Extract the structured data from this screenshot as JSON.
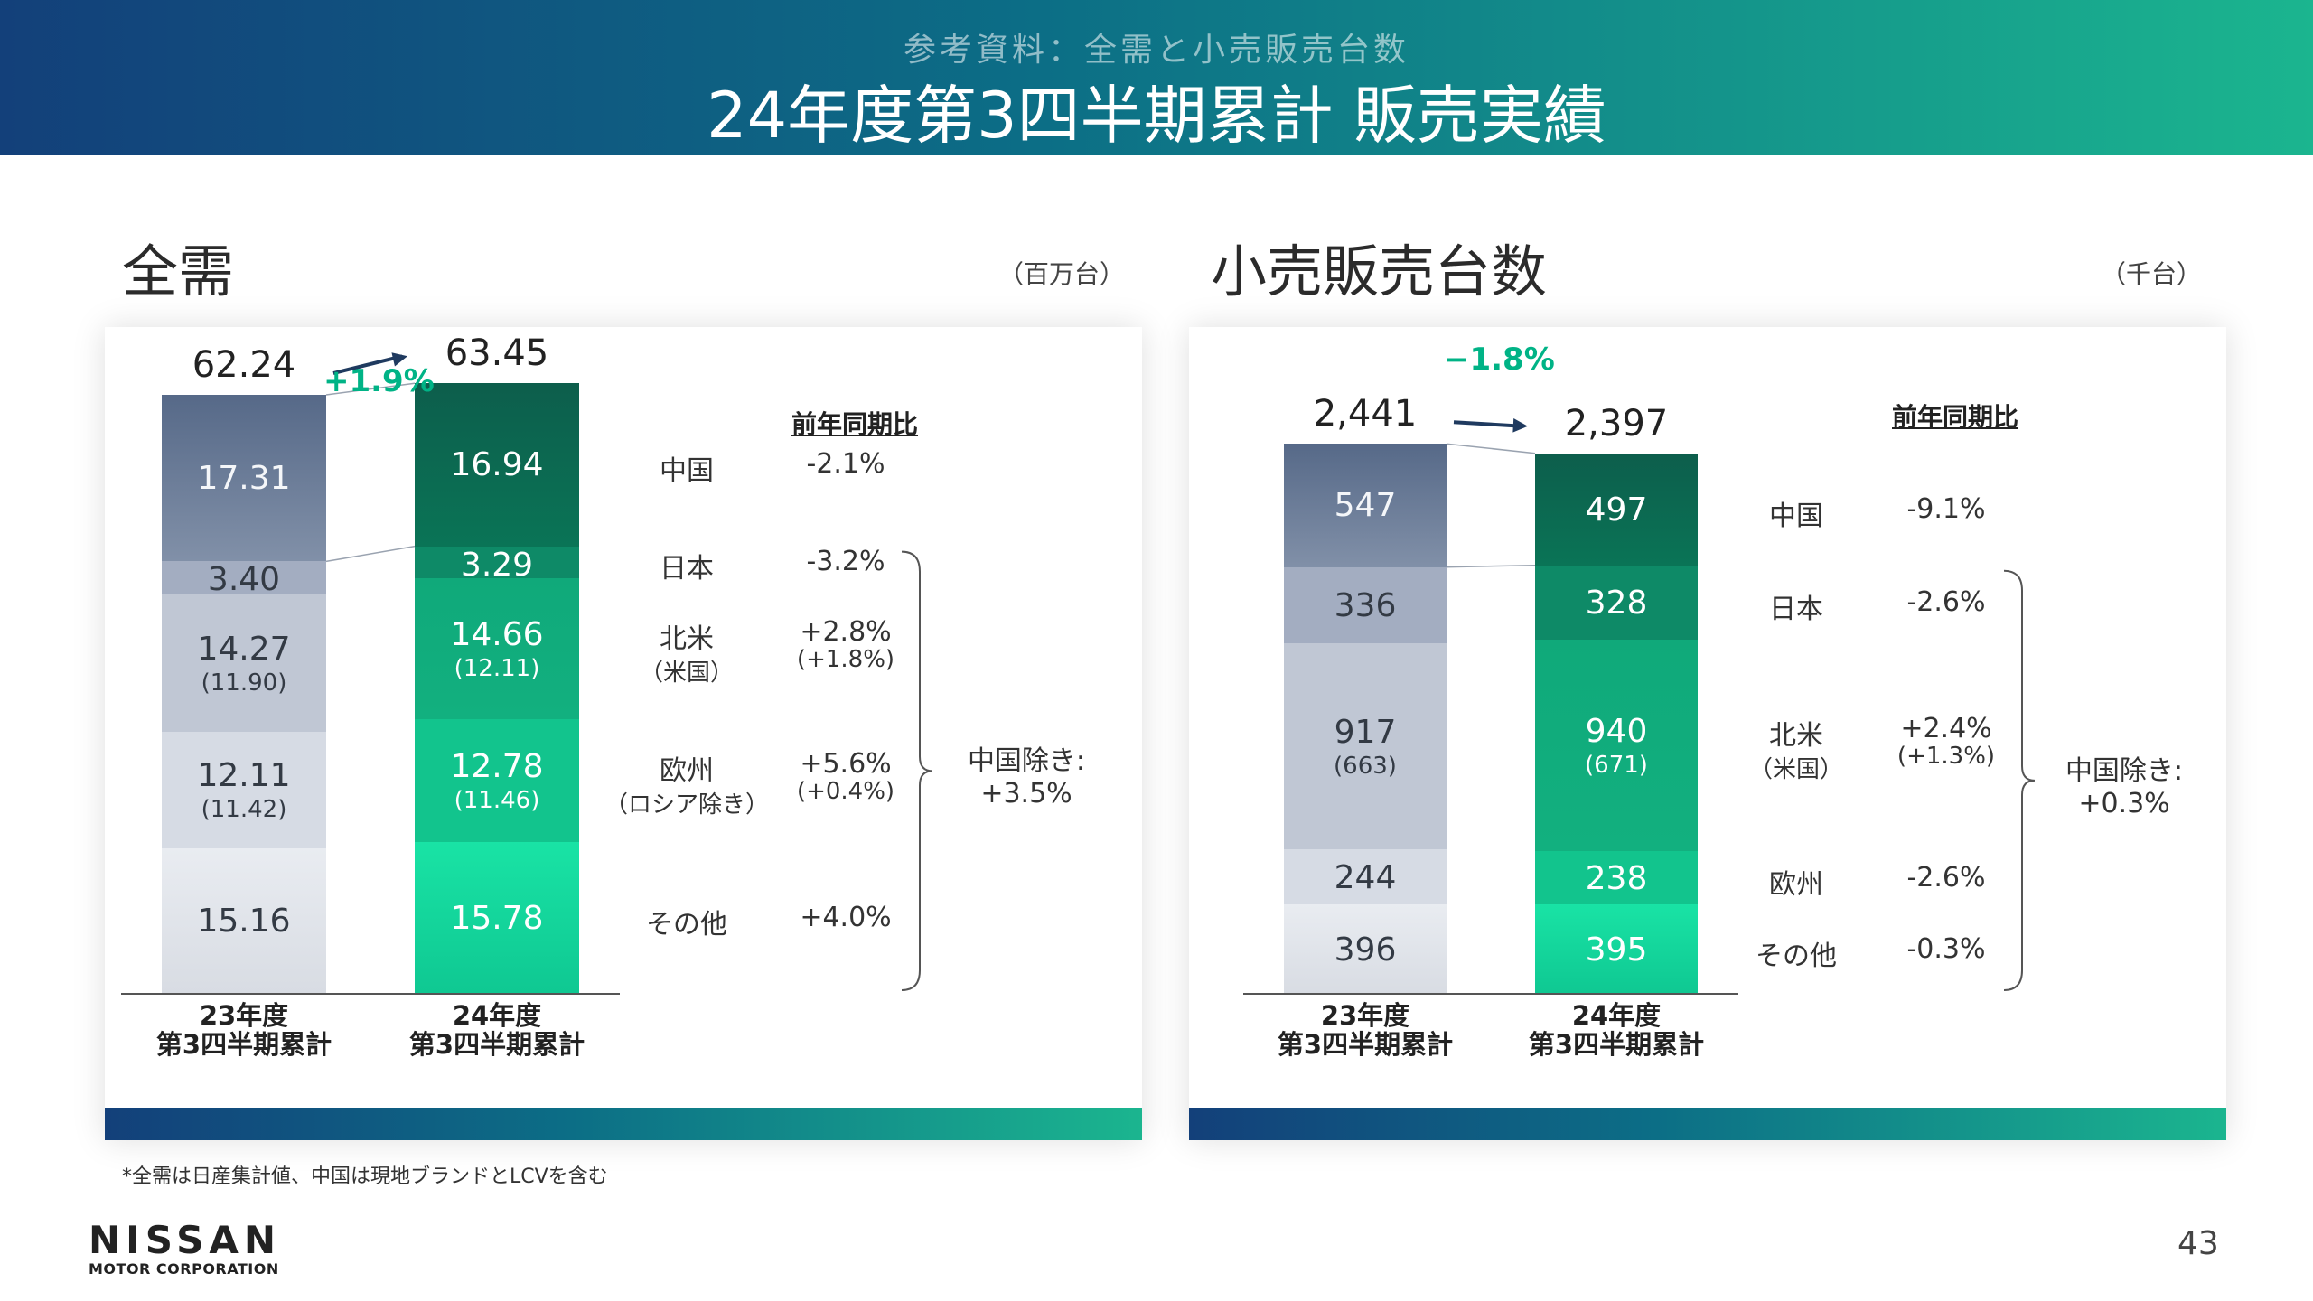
{
  "header": {
    "subtitle": "参考資料：全需と小売販売台数",
    "title": "24年度第3四半期累計 販売実績"
  },
  "colors": {
    "header_gradient": [
      "#13407a",
      "#0c6e86",
      "#1bb58f"
    ],
    "accent_green": "#00b386",
    "arrow_navy": "#1f3a5f"
  },
  "chart_data": [
    {
      "type": "bar",
      "stacked": true,
      "title": "全需",
      "unit": "（百万台）",
      "categories": [
        "23年度\n第3四半期累計",
        "24年度\n第3四半期累計"
      ],
      "totals": [
        "62.24",
        "63.45"
      ],
      "growth": "+1.9%",
      "yoy_header": "前年同期比",
      "segments": [
        {
          "name": "中国",
          "name2": "",
          "values": [
            17.31,
            16.94
          ],
          "sub": [
            "",
            ""
          ],
          "yoy": "-2.1%",
          "yoy_sub": ""
        },
        {
          "name": "日本",
          "name2": "",
          "values": [
            3.4,
            3.29
          ],
          "sub": [
            "",
            ""
          ],
          "yoy": "-3.2%",
          "yoy_sub": ""
        },
        {
          "name": "北米",
          "name2": "（米国）",
          "values": [
            14.27,
            14.66
          ],
          "sub": [
            "(11.90)",
            "(12.11)"
          ],
          "yoy": "+2.8%",
          "yoy_sub": "(+1.8%)"
        },
        {
          "name": "欧州",
          "name2": "（ロシア除き）",
          "values": [
            12.11,
            12.78
          ],
          "sub": [
            "(11.42)",
            "(11.46)"
          ],
          "yoy": "+5.6%",
          "yoy_sub": "(+0.4%)"
        },
        {
          "name": "その他",
          "name2": "",
          "values": [
            15.16,
            15.78
          ],
          "sub": [
            "",
            ""
          ],
          "yoy": "+4.0%",
          "yoy_sub": ""
        }
      ],
      "value_labels": [
        [
          "17.31",
          "3.40",
          "14.27",
          "12.11",
          "15.16"
        ],
        [
          "16.94",
          "3.29",
          "14.66",
          "12.78",
          "15.78"
        ]
      ],
      "ex_china": {
        "line1": "中国除き:",
        "line2": "+3.5%"
      }
    },
    {
      "type": "bar",
      "stacked": true,
      "title": "小売販売台数",
      "unit": "（千台）",
      "categories": [
        "23年度\n第3四半期累計",
        "24年度\n第3四半期累計"
      ],
      "totals": [
        "2,441",
        "2,397"
      ],
      "growth": "−1.8%",
      "yoy_header": "前年同期比",
      "segments": [
        {
          "name": "中国",
          "name2": "",
          "values": [
            547,
            497
          ],
          "sub": [
            "",
            ""
          ],
          "yoy": "-9.1%",
          "yoy_sub": ""
        },
        {
          "name": "日本",
          "name2": "",
          "values": [
            336,
            328
          ],
          "sub": [
            "",
            ""
          ],
          "yoy": "-2.6%",
          "yoy_sub": ""
        },
        {
          "name": "北米",
          "name2": "（米国）",
          "values": [
            917,
            940
          ],
          "sub": [
            "(663)",
            "(671)"
          ],
          "yoy": "+2.4%",
          "yoy_sub": "(+1.3%)"
        },
        {
          "name": "欧州",
          "name2": "",
          "values": [
            244,
            238
          ],
          "sub": [
            "",
            ""
          ],
          "yoy": "-2.6%",
          "yoy_sub": ""
        },
        {
          "name": "その他",
          "name2": "",
          "values": [
            396,
            395
          ],
          "sub": [
            "",
            ""
          ],
          "yoy": "-0.3%",
          "yoy_sub": ""
        }
      ],
      "value_labels": [
        [
          "547",
          "336",
          "917",
          "244",
          "396"
        ],
        [
          "497",
          "328",
          "940",
          "238",
          "395"
        ]
      ],
      "ex_china": {
        "line1": "中国除き:",
        "line2": "+0.3%"
      }
    }
  ],
  "footnote": "*全需は日産集計値、中国は現地ブランドとLCVを含む",
  "logo": {
    "name": "NISSAN",
    "corp": "MOTOR CORPORATION"
  },
  "page_number": "43"
}
